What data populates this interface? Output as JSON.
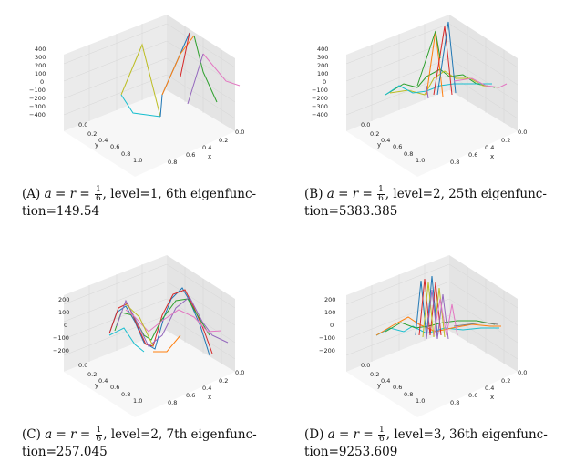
{
  "panels": [
    {
      "id": "a",
      "label": "(A)",
      "a_text": "a",
      "eq1": "=",
      "r_text": "r",
      "eq2": "=",
      "frac_num": "1",
      "frac_den": "6",
      "rest_line1": ", level=1, 6th eigenfunc-",
      "rest_line2": "tion=149.54",
      "z_ticks": [
        "400",
        "300",
        "200",
        "100",
        "0",
        "−100",
        "−200",
        "−300",
        "−400"
      ],
      "y_ticks": [
        "0.0",
        "0.2",
        "0.4",
        "0.6",
        "0.8",
        "1.0"
      ],
      "x_ticks": [
        "0.0",
        "0.2",
        "0.4",
        "0.6",
        "0.8"
      ],
      "y_label": "y",
      "x_label": "x"
    },
    {
      "id": "b",
      "label": "(B)",
      "a_text": "a",
      "eq1": "=",
      "r_text": "r",
      "eq2": "=",
      "frac_num": "1",
      "frac_den": "6",
      "rest_line1": ", level=2, 25th eigenfunc-",
      "rest_line2": "tion=5383.385",
      "z_ticks": [
        "400",
        "300",
        "200",
        "100",
        "0",
        "−100",
        "−200",
        "−300",
        "−400"
      ],
      "y_ticks": [
        "0.0",
        "0.2",
        "0.4",
        "0.6",
        "0.8",
        "1.0"
      ],
      "x_ticks": [
        "0.0",
        "0.2",
        "0.4",
        "0.6",
        "0.8"
      ],
      "y_label": "y",
      "x_label": "x"
    },
    {
      "id": "c",
      "label": "(C)",
      "a_text": "a",
      "eq1": "=",
      "r_text": "r",
      "eq2": "=",
      "frac_num": "1",
      "frac_den": "6",
      "rest_line1": ", level=2, 7th eigenfunc-",
      "rest_line2": "tion=257.045",
      "z_ticks": [
        "200",
        "100",
        "0",
        "−100",
        "−200"
      ],
      "y_ticks": [
        "0.0",
        "0.2",
        "0.4",
        "0.6",
        "0.8",
        "1.0"
      ],
      "x_ticks": [
        "0.0",
        "0.2",
        "0.4",
        "0.6",
        "0.8"
      ],
      "y_label": "y",
      "x_label": "x"
    },
    {
      "id": "d",
      "label": "(D)",
      "a_text": "a",
      "eq1": "=",
      "r_text": "r",
      "eq2": "=",
      "frac_num": "1",
      "frac_den": "6",
      "rest_line1": ", level=3, 36th eigenfunc-",
      "rest_line2": "tion=9253.609",
      "z_ticks": [
        "200",
        "100",
        "0",
        "−100",
        "−200"
      ],
      "y_ticks": [
        "0.0",
        "0.2",
        "0.4",
        "0.6",
        "0.8",
        "1.0"
      ],
      "x_ticks": [
        "0.0",
        "0.2",
        "0.4",
        "0.6",
        "0.8"
      ],
      "y_label": "y",
      "x_label": "x"
    }
  ],
  "line_colors": [
    "#1f77b4",
    "#ff7f0e",
    "#2ca02c",
    "#d62728",
    "#9467bd",
    "#8c564b",
    "#e377c2",
    "#7f7f7f",
    "#bcbd22",
    "#17becf"
  ]
}
